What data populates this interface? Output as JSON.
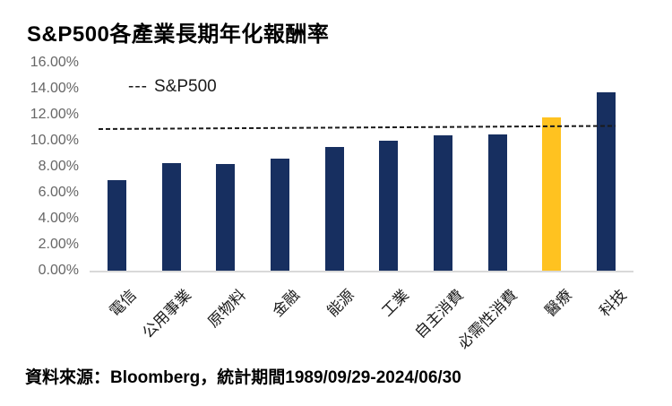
{
  "title": "S&P500各產業長期年化報酬率",
  "legend": {
    "dashes": "---",
    "label": "S&P500"
  },
  "source_note": "資料來源：Bloomberg，統計期間1989/09/29-2024/06/30",
  "colors": {
    "bar": "#172F60",
    "highlight": "#FFC220",
    "reference_line": "#1A1A1A",
    "axis_tick_label": "#666666",
    "baseline": "#D9D9D9",
    "category_label": "#1A1A1A"
  },
  "chart_data": {
    "type": "bar",
    "title": "S&P500各產業長期年化報酬率",
    "categories": [
      "電信",
      "公用事業",
      "原物料",
      "金融",
      "能源",
      "工業",
      "自主消費",
      "必需性消費",
      "醫療",
      "科技"
    ],
    "values": [
      7.0,
      8.3,
      8.2,
      8.6,
      9.5,
      10.0,
      10.4,
      10.5,
      11.8,
      13.7
    ],
    "unit": "%",
    "highlighted_category": "醫療",
    "reference_line": {
      "name": "S&P500",
      "value": 10.9,
      "style": "dashed"
    },
    "ylim": [
      0,
      16
    ],
    "yticks": [
      0,
      2,
      4,
      6,
      8,
      10,
      12,
      14,
      16
    ],
    "ytick_labels": [
      "0.00%",
      "2.00%",
      "4.00%",
      "6.00%",
      "8.00%",
      "10.00%",
      "12.00%",
      "14.00%",
      "16.00%"
    ],
    "xlabel": "",
    "ylabel": "",
    "grid": false,
    "legend_position": "top-left-inside",
    "x_label_rotation_deg": 45
  }
}
